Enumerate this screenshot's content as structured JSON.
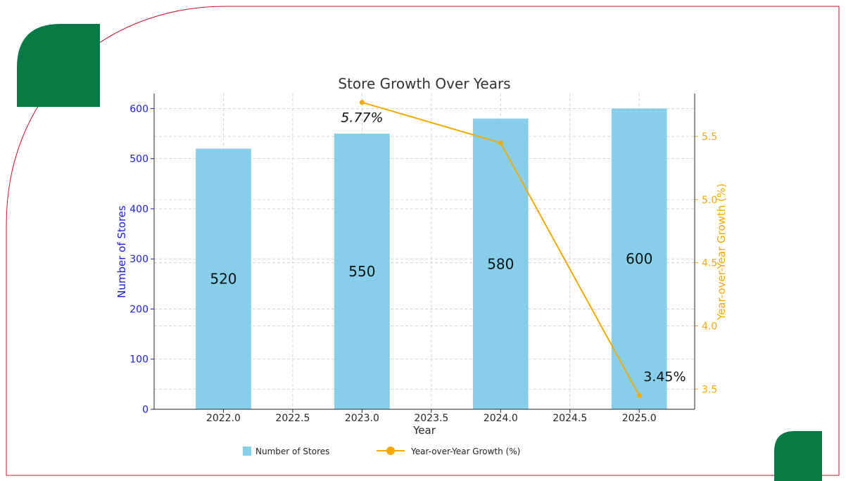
{
  "chart_data": {
    "type": "bar",
    "title": "Store Growth Over Years",
    "xlabel": "Year",
    "ylabel": "Number of Stores",
    "y2label": "Year-over-Year Growth (%)",
    "x": [
      2022.0,
      2023.0,
      2024.0,
      2025.0
    ],
    "xlim": [
      2021.5,
      2025.4
    ],
    "xticks": [
      "2022.0",
      "2022.5",
      "2023.0",
      "2023.5",
      "2024.0",
      "2024.5",
      "2025.0"
    ],
    "ylim": [
      0,
      630
    ],
    "yticks": [
      "0",
      "100",
      "200",
      "300",
      "400",
      "500",
      "600"
    ],
    "y2lim": [
      3.34,
      5.84
    ],
    "y2ticks": [
      "3.5",
      "4.0",
      "4.5",
      "5.0",
      "5.5"
    ],
    "series": [
      {
        "name": "Number of Stores",
        "kind": "bar",
        "x": [
          2022.0,
          2023.0,
          2024.0,
          2025.0
        ],
        "values": [
          520,
          550,
          580,
          600
        ],
        "labels": [
          "520",
          "550",
          "580",
          "600"
        ],
        "color": "#87ceeb"
      },
      {
        "name": "Year-over-Year Growth (%)",
        "kind": "line",
        "x": [
          2023.0,
          2024.0,
          2025.0
        ],
        "values": [
          5.77,
          5.45,
          3.45
        ],
        "labels": [
          "5.77%",
          "",
          "3.45%"
        ],
        "color": "#f4a900"
      }
    ],
    "grid": true,
    "legend_position": "bottom"
  },
  "colors": {
    "frame_border": "#c8102e",
    "accent_green": "#077a45",
    "left_axis": "#1a1ad6",
    "right_axis": "#f4a900"
  }
}
